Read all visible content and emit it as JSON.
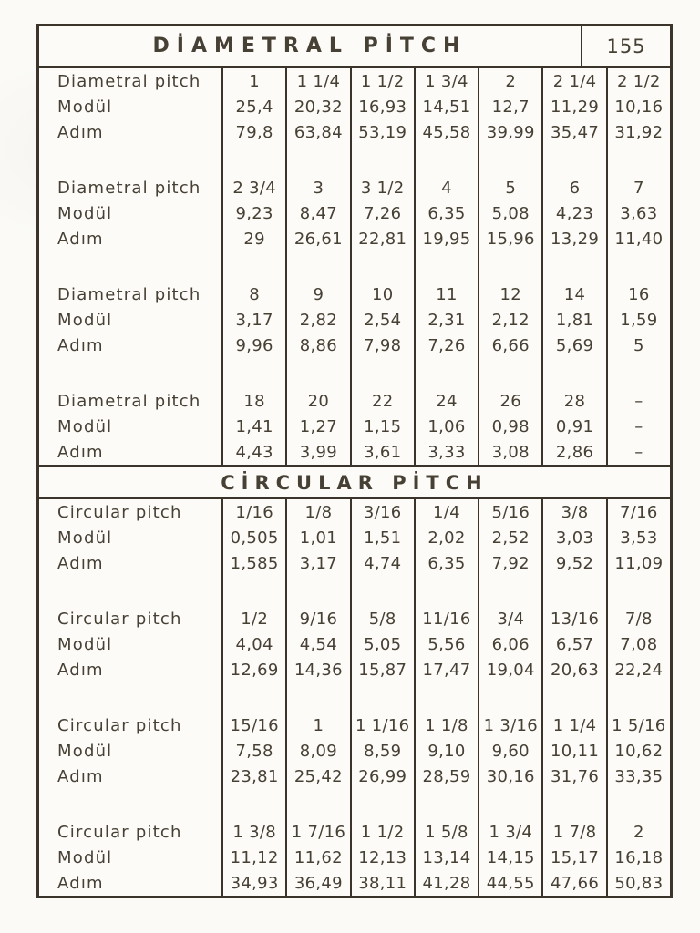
{
  "page": {
    "number": "155"
  },
  "sections": [
    {
      "title": "DİAMETRAL PİTCH",
      "groups": [
        {
          "rows": [
            {
              "label": "Diametral pitch",
              "values": [
                "1",
                "1 1/4",
                "1 1/2",
                "1 3/4",
                "2",
                "2 1/4",
                "2 1/2"
              ]
            },
            {
              "label": "Modül",
              "values": [
                "25,4",
                "20,32",
                "16,93",
                "14,51",
                "12,7",
                "11,29",
                "10,16"
              ]
            },
            {
              "label": "Adım",
              "values": [
                "79,8",
                "63,84",
                "53,19",
                "45,58",
                "39,99",
                "35,47",
                "31,92"
              ]
            }
          ]
        },
        {
          "rows": [
            {
              "label": "Diametral pitch",
              "values": [
                "2 3/4",
                "3",
                "3 1/2",
                "4",
                "5",
                "6",
                "7"
              ]
            },
            {
              "label": "Modül",
              "values": [
                "9,23",
                "8,47",
                "7,26",
                "6,35",
                "5,08",
                "4,23",
                "3,63"
              ]
            },
            {
              "label": "Adım",
              "values": [
                "29",
                "26,61",
                "22,81",
                "19,95",
                "15,96",
                "13,29",
                "11,40"
              ]
            }
          ]
        },
        {
          "rows": [
            {
              "label": "Diametral pitch",
              "values": [
                "8",
                "9",
                "10",
                "11",
                "12",
                "14",
                "16"
              ]
            },
            {
              "label": "Modül",
              "values": [
                "3,17",
                "2,82",
                "2,54",
                "2,31",
                "2,12",
                "1,81",
                "1,59"
              ]
            },
            {
              "label": "Adım",
              "values": [
                "9,96",
                "8,86",
                "7,98",
                "7,26",
                "6,66",
                "5,69",
                "5"
              ]
            }
          ]
        },
        {
          "rows": [
            {
              "label": "Diametral pitch",
              "values": [
                "18",
                "20",
                "22",
                "24",
                "26",
                "28",
                "–"
              ]
            },
            {
              "label": "Modül",
              "values": [
                "1,41",
                "1,27",
                "1,15",
                "1,06",
                "0,98",
                "0,91",
                "–"
              ]
            },
            {
              "label": "Adım",
              "values": [
                "4,43",
                "3,99",
                "3,61",
                "3,33",
                "3,08",
                "2,86",
                "–"
              ]
            }
          ]
        }
      ]
    },
    {
      "title": "CİRCULAR PİTCH",
      "groups": [
        {
          "rows": [
            {
              "label": "Circular pitch",
              "values": [
                "1/16",
                "1/8",
                "3/16",
                "1/4",
                "5/16",
                "3/8",
                "7/16"
              ]
            },
            {
              "label": "Modül",
              "values": [
                "0,505",
                "1,01",
                "1,51",
                "2,02",
                "2,52",
                "3,03",
                "3,53"
              ]
            },
            {
              "label": "Adım",
              "values": [
                "1,585",
                "3,17",
                "4,74",
                "6,35",
                "7,92",
                "9,52",
                "11,09"
              ]
            }
          ]
        },
        {
          "rows": [
            {
              "label": "Circular pitch",
              "values": [
                "1/2",
                "9/16",
                "5/8",
                "11/16",
                "3/4",
                "13/16",
                "7/8"
              ]
            },
            {
              "label": "Modül",
              "values": [
                "4,04",
                "4,54",
                "5,05",
                "5,56",
                "6,06",
                "6,57",
                "7,08"
              ]
            },
            {
              "label": "Adım",
              "values": [
                "12,69",
                "14,36",
                "15,87",
                "17,47",
                "19,04",
                "20,63",
                "22,24"
              ]
            }
          ]
        },
        {
          "rows": [
            {
              "label": "Circular pitch",
              "values": [
                "15/16",
                "1",
                "1 1/16",
                "1 1/8",
                "1 3/16",
                "1 1/4",
                "1 5/16"
              ]
            },
            {
              "label": "Modül",
              "values": [
                "7,58",
                "8,09",
                "8,59",
                "9,10",
                "9,60",
                "10,11",
                "10,62"
              ]
            },
            {
              "label": "Adım",
              "values": [
                "23,81",
                "25,42",
                "26,99",
                "28,59",
                "30,16",
                "31,76",
                "33,35"
              ]
            }
          ]
        },
        {
          "rows": [
            {
              "label": "Circular pitch",
              "values": [
                "1 3/8",
                "1 7/16",
                "1 1/2",
                "1 5/8",
                "1 3/4",
                "1 7/8",
                "2"
              ]
            },
            {
              "label": "Modül",
              "values": [
                "11,12",
                "11,62",
                "12,13",
                "13,14",
                "14,15",
                "15,17",
                "16,18"
              ]
            },
            {
              "label": "Adım",
              "values": [
                "34,93",
                "36,49",
                "38,11",
                "41,28",
                "44,55",
                "47,66",
                "50,83"
              ]
            }
          ]
        }
      ]
    }
  ]
}
